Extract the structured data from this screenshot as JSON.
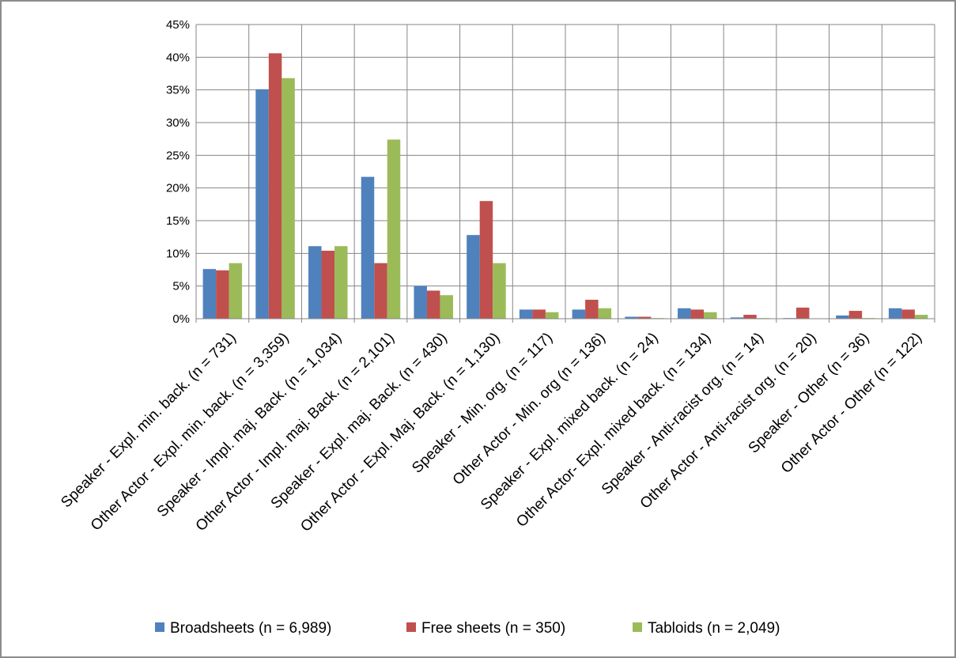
{
  "chart_data": {
    "type": "bar",
    "title": "",
    "xlabel": "",
    "ylabel": "",
    "ylim": [
      0,
      45
    ],
    "y_ticks": [
      "0%",
      "5%",
      "10%",
      "15%",
      "20%",
      "25%",
      "30%",
      "35%",
      "40%",
      "45%"
    ],
    "grid": true,
    "legend_position": "bottom",
    "categories": [
      "Speaker - Expl. min. back. (n = 731)",
      "Other Actor - Expl. min. back. (n = 3,359)",
      "Speaker - Impl. maj. Back. (n = 1,034)",
      "Other Actor  - Impl. maj. Back. (n = 2,101)",
      "Speaker - Expl. maj. Back. (n = 430)",
      "Other Actor - Expl. Maj. Back. (n = 1,130)",
      "Speaker - Min. org. (n = 117)",
      "Other Actor - Min. org (n = 136)",
      "Speaker - Expl. mixed back. (n = 24)",
      "Other Actor- Expl. mixed back. (n = 134)",
      "Speaker - Anti-racist org. (n = 14)",
      "Other Actor - Anti-racist org. (n = 20)",
      "Speaker - Other (n = 36)",
      "Other Actor - Other (n = 122)"
    ],
    "series": [
      {
        "name": "Broadsheets (n = 6,989)",
        "color": "#4f81bd",
        "values": [
          7.6,
          35.1,
          11.1,
          21.7,
          5.0,
          12.8,
          1.4,
          1.4,
          0.3,
          1.6,
          0.2,
          0.1,
          0.5,
          1.6
        ]
      },
      {
        "name": "Free sheets (n = 350)",
        "color": "#c0504d",
        "values": [
          7.4,
          40.6,
          10.4,
          8.5,
          4.3,
          18.0,
          1.4,
          2.9,
          0.3,
          1.4,
          0.6,
          1.7,
          1.2,
          1.4
        ]
      },
      {
        "name": "Tabloids (n = 2,049)",
        "color": "#9bbb59",
        "values": [
          8.5,
          36.8,
          11.1,
          27.4,
          3.6,
          8.5,
          1.0,
          1.6,
          0.1,
          1.0,
          0.1,
          0.0,
          0.1,
          0.6
        ]
      }
    ]
  }
}
